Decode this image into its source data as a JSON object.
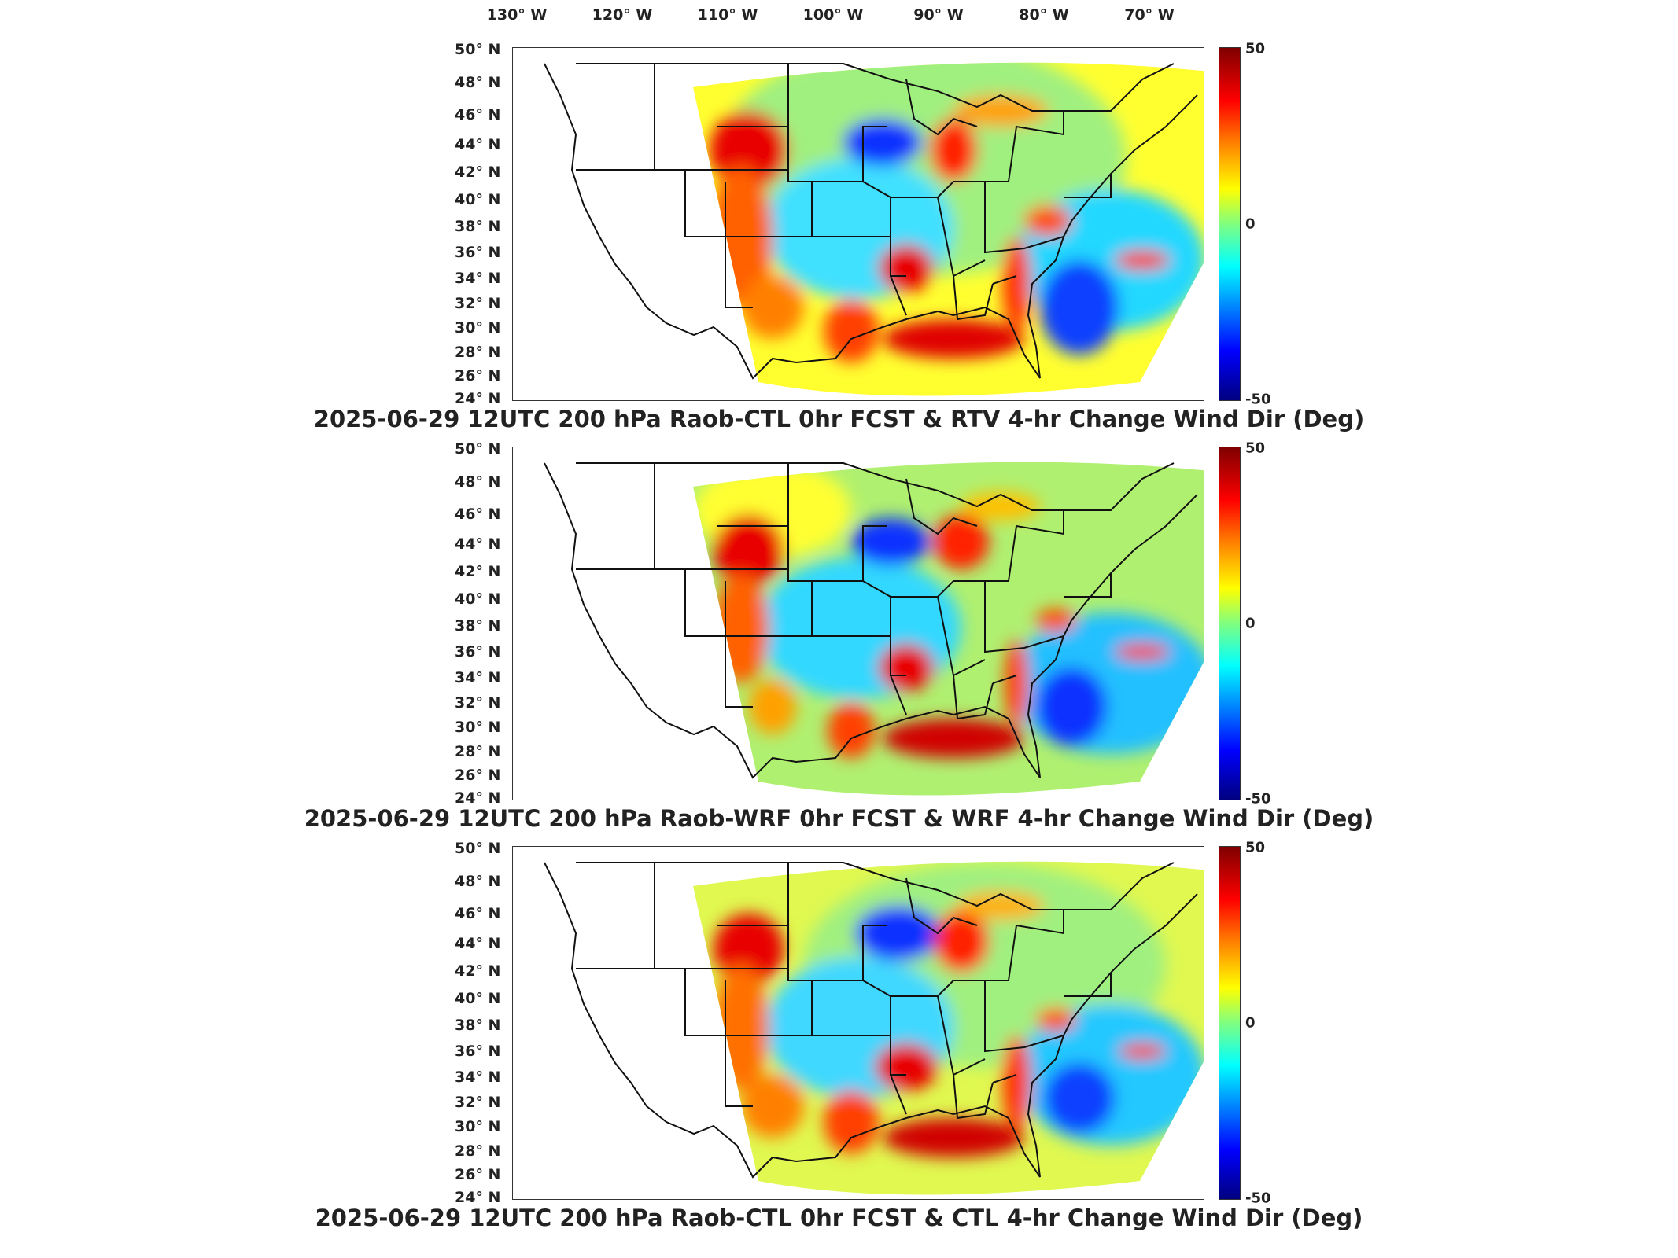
{
  "longitude_labels": [
    "130° W",
    "120° W",
    "110° W",
    "100° W",
    "90° W",
    "80° W",
    "70° W"
  ],
  "latitude_labels": [
    "50° N",
    "48° N",
    "46° N",
    "44° N",
    "42° N",
    "40° N",
    "38° N",
    "36° N",
    "34° N",
    "32° N",
    "30° N",
    "28° N",
    "26° N",
    "24° N"
  ],
  "colorbar": {
    "max_label": "50",
    "mid_label": "0",
    "min_label": "-50"
  },
  "panels": [
    {
      "title": "2025-06-29 12UTC 200 hPa Raob-CTL 0hr FCST & RTV 4-hr Change Wind Dir (Deg)"
    },
    {
      "title": "2025-06-29 12UTC 200 hPa Raob-WRF 0hr FCST & WRF 4-hr Change Wind Dir (Deg)"
    },
    {
      "title": "2025-06-29 12UTC 200 hPa Raob-CTL 0hr FCST & CTL 4-hr Change Wind Dir (Deg)"
    }
  ],
  "colors": {
    "red": "#e80000",
    "dark_red": "#7f0000",
    "yellow": "#ffff20",
    "green": "#9cf070",
    "cyan": "#20d8ff",
    "blue": "#1040ff",
    "dark_blue": "#00007f"
  }
}
